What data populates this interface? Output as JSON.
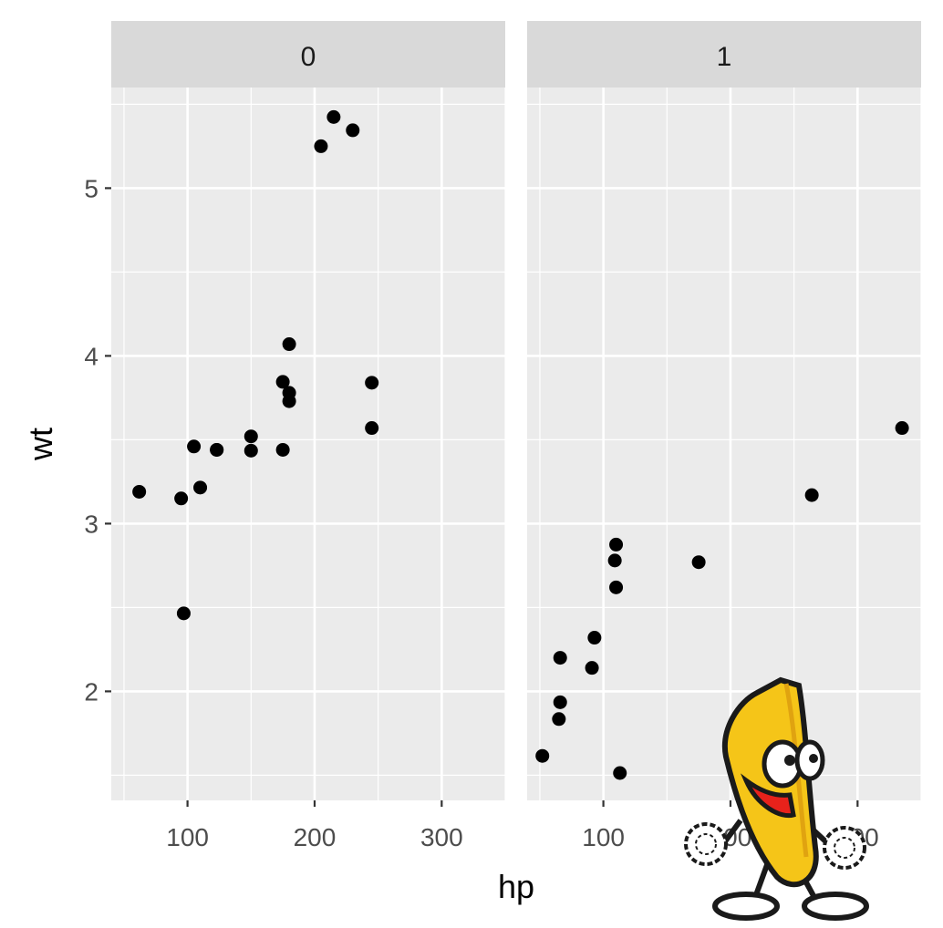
{
  "chart_data": {
    "type": "scatter",
    "xlabel": "hp",
    "ylabel": "wt",
    "xlim": [
      40,
      350
    ],
    "ylim": [
      1.35,
      5.6
    ],
    "x_ticks": [
      100,
      200,
      300
    ],
    "y_ticks": [
      2,
      3,
      4,
      5
    ],
    "grid": true,
    "facets": [
      {
        "label": "0",
        "points": [
          {
            "x": 110,
            "y": 3.215
          },
          {
            "x": 175,
            "y": 3.44
          },
          {
            "x": 105,
            "y": 3.46
          },
          {
            "x": 245,
            "y": 3.57
          },
          {
            "x": 62,
            "y": 3.19
          },
          {
            "x": 95,
            "y": 3.15
          },
          {
            "x": 123,
            "y": 3.44
          },
          {
            "x": 123,
            "y": 3.44
          },
          {
            "x": 180,
            "y": 4.07
          },
          {
            "x": 180,
            "y": 3.73
          },
          {
            "x": 180,
            "y": 3.78
          },
          {
            "x": 205,
            "y": 5.25
          },
          {
            "x": 215,
            "y": 5.424
          },
          {
            "x": 230,
            "y": 5.345
          },
          {
            "x": 97,
            "y": 2.465
          },
          {
            "x": 150,
            "y": 3.52
          },
          {
            "x": 150,
            "y": 3.435
          },
          {
            "x": 245,
            "y": 3.84
          },
          {
            "x": 175,
            "y": 3.845
          }
        ]
      },
      {
        "label": "1",
        "points": [
          {
            "x": 110,
            "y": 2.62
          },
          {
            "x": 110,
            "y": 2.875
          },
          {
            "x": 93,
            "y": 2.32
          },
          {
            "x": 66,
            "y": 2.2
          },
          {
            "x": 52,
            "y": 1.615
          },
          {
            "x": 65,
            "y": 1.835
          },
          {
            "x": 66,
            "y": 1.935
          },
          {
            "x": 91,
            "y": 2.14
          },
          {
            "x": 113,
            "y": 1.513
          },
          {
            "x": 264,
            "y": 3.17
          },
          {
            "x": 175,
            "y": 2.77
          },
          {
            "x": 335,
            "y": 3.57
          },
          {
            "x": 109,
            "y": 2.78
          }
        ]
      }
    ]
  },
  "colors": {
    "panel_bg": "#ebebeb",
    "strip_bg": "#d9d9d9",
    "grid": "#ffffff",
    "point": "#000000",
    "banana_fill": "#f5c518",
    "banana_outline": "#1a1a1a",
    "mouth": "#e8221b"
  }
}
